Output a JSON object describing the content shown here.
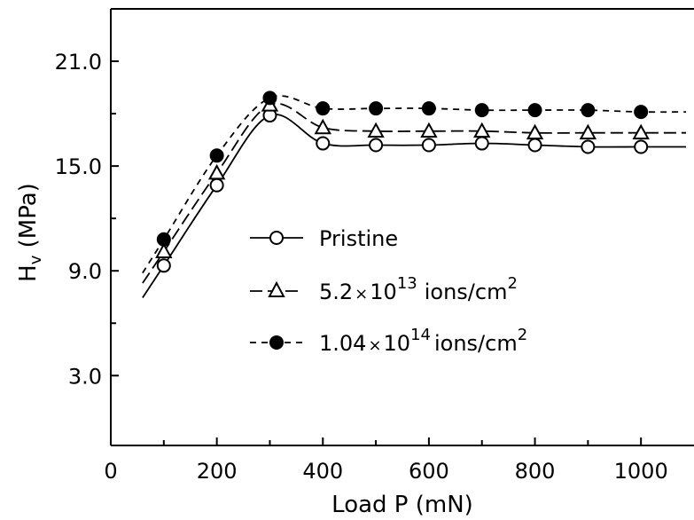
{
  "chart_data": {
    "type": "line",
    "xlabel": "Load P (mN)",
    "ylabel": "H_v (MPa)",
    "xlim": [
      0,
      1100
    ],
    "ylim": [
      -1,
      24
    ],
    "x_ticks": [
      0,
      200,
      400,
      600,
      800,
      1000
    ],
    "y_ticks": [
      3.0,
      9.0,
      15.0,
      21.0
    ],
    "y_tick_labels": [
      "3.0",
      "9.0",
      "15.0",
      "21.0"
    ],
    "grid": false,
    "legend_position": "center",
    "x": [
      100,
      200,
      300,
      400,
      500,
      600,
      700,
      800,
      900,
      1000
    ],
    "series": [
      {
        "name": "Pristine",
        "label_parts": {
          "main": "Pristine"
        },
        "marker": "open-circle",
        "linestyle": "solid",
        "values": [
          9.3,
          13.9,
          17.9,
          16.3,
          16.2,
          16.2,
          16.3,
          16.2,
          16.1,
          16.1
        ]
      },
      {
        "name": "5.2×10^13 ions/cm^2",
        "label_parts": {
          "coef": "5.2",
          "times": "×",
          "base": "10",
          "exp": "13",
          "unit": "ions/cm",
          "unit_exp": "2"
        },
        "marker": "open-triangle",
        "linestyle": "long-dash",
        "values": [
          10.1,
          14.6,
          18.5,
          17.2,
          17.0,
          17.0,
          17.0,
          16.9,
          16.9,
          16.9
        ]
      },
      {
        "name": "1.04×10^14 ions/cm^2",
        "label_parts": {
          "coef": "1.04",
          "times": "×",
          "base": "10",
          "exp": "14",
          "unit": "ions/cm",
          "unit_exp": "2"
        },
        "marker": "filled-circle",
        "linestyle": "short-dash",
        "values": [
          10.8,
          15.6,
          18.9,
          18.3,
          18.3,
          18.3,
          18.2,
          18.2,
          18.2,
          18.1
        ]
      }
    ]
  }
}
